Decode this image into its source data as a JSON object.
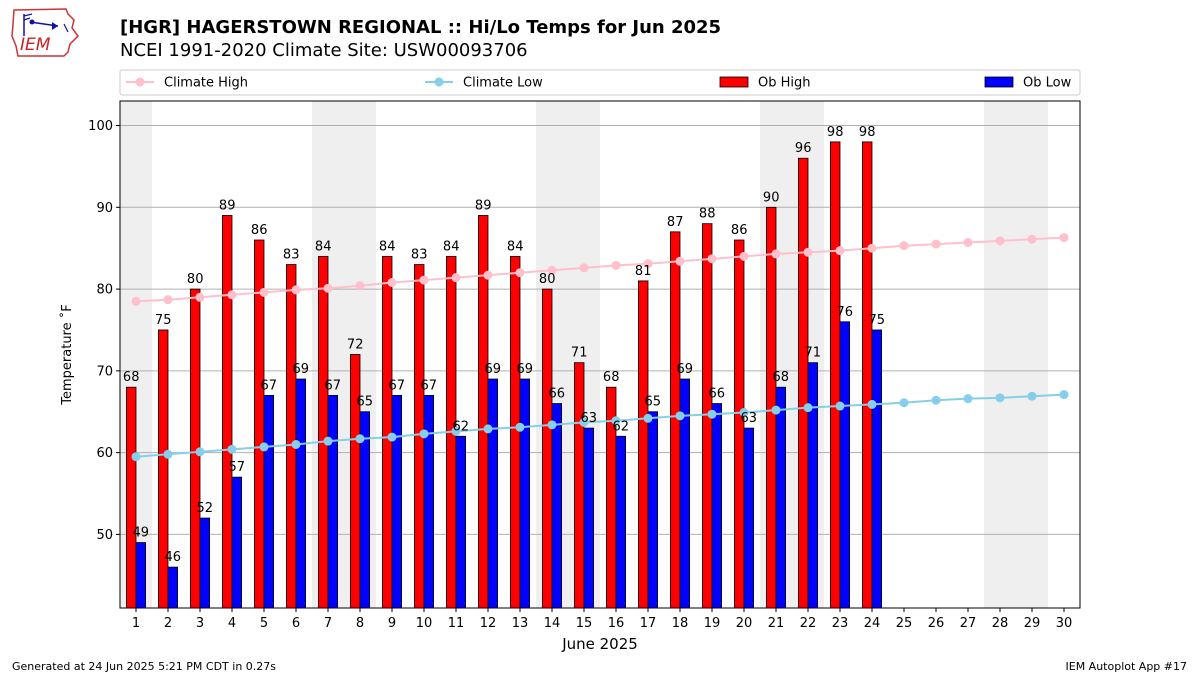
{
  "header": {
    "title_line1": "[HGR] HAGERSTOWN REGIONAL :: Hi/Lo Temps for Jun 2025",
    "title_line2": "NCEI 1991-2020 Climate Site: USW00093706",
    "logo_text": "IEM",
    "logo_icon": "iowa-weather-station-logo-icon"
  },
  "footer": {
    "left": "Generated at 24 Jun 2025 5:21 PM CDT in 0.27s",
    "right": "IEM Autoplot App #17"
  },
  "chart_data": {
    "type": "bar",
    "xlabel": "June 2025",
    "ylabel": "Temperature ˚F",
    "ylim": [
      41,
      103
    ],
    "yticks": [
      50,
      60,
      70,
      80,
      90,
      100
    ],
    "xlim": [
      0.5,
      30.5
    ],
    "grid": "horizontal",
    "legend_position": "top",
    "days": [
      1,
      2,
      3,
      4,
      5,
      6,
      7,
      8,
      9,
      10,
      11,
      12,
      13,
      14,
      15,
      16,
      17,
      18,
      19,
      20,
      21,
      22,
      23,
      24,
      25,
      26,
      27,
      28,
      29,
      30
    ],
    "weekend_bands": [
      [
        0.5,
        1.5
      ],
      [
        6.5,
        8.5
      ],
      [
        13.5,
        15.5
      ],
      [
        20.5,
        22.5
      ],
      [
        27.5,
        29.5
      ]
    ],
    "series": [
      {
        "name": "Climate High",
        "kind": "line",
        "color": "#ffc0cb",
        "values": [
          78.5,
          78.7,
          79.0,
          79.3,
          79.6,
          79.9,
          80.1,
          80.4,
          80.8,
          81.1,
          81.4,
          81.7,
          82.0,
          82.3,
          82.6,
          82.9,
          83.1,
          83.4,
          83.7,
          84.0,
          84.3,
          84.5,
          84.7,
          85.0,
          85.3,
          85.5,
          85.7,
          85.9,
          86.1,
          86.3
        ]
      },
      {
        "name": "Climate Low",
        "kind": "line",
        "color": "#87ceeb",
        "values": [
          59.5,
          59.8,
          60.1,
          60.4,
          60.7,
          61.0,
          61.4,
          61.7,
          61.9,
          62.3,
          62.6,
          62.9,
          63.1,
          63.4,
          63.7,
          63.9,
          64.2,
          64.5,
          64.7,
          64.9,
          65.2,
          65.5,
          65.7,
          65.9,
          66.1,
          66.4,
          66.6,
          66.7,
          66.9,
          67.1
        ]
      },
      {
        "name": "Ob High",
        "kind": "bar",
        "color": "#ff0000",
        "values": [
          68,
          75,
          80,
          89,
          86,
          83,
          84,
          72,
          84,
          83,
          84,
          89,
          84,
          80,
          71,
          68,
          81,
          87,
          88,
          86,
          90,
          96,
          98,
          98
        ]
      },
      {
        "name": "Ob Low",
        "kind": "bar",
        "color": "#0000ff",
        "values": [
          49,
          46,
          52,
          57,
          67,
          69,
          67,
          65,
          67,
          67,
          62,
          69,
          69,
          66,
          63,
          62,
          65,
          69,
          66,
          63,
          68,
          71,
          76,
          75
        ]
      }
    ]
  }
}
